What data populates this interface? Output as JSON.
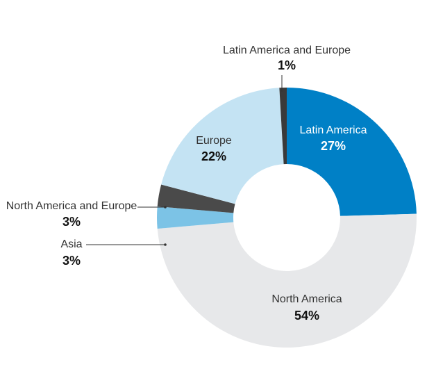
{
  "chart_data": {
    "type": "donut",
    "title": "",
    "slices": [
      {
        "name": "Latin America",
        "value": 27,
        "label": "27%",
        "color": "#0080c6"
      },
      {
        "name": "North America",
        "value": 54,
        "label": "54%",
        "color": "#e7e8ea"
      },
      {
        "name": "Asia",
        "value": 3,
        "label": "3%",
        "color": "#7cc3e6"
      },
      {
        "name": "North America and Europe",
        "value": 3,
        "label": "3%",
        "color": "#4a4a4a"
      },
      {
        "name": "Europe",
        "value": 22,
        "label": "22%",
        "color": "#c4e3f3"
      },
      {
        "name": "Latin America and Europe",
        "value": 1,
        "label": "1%",
        "color": "#3a3a3a"
      }
    ]
  }
}
